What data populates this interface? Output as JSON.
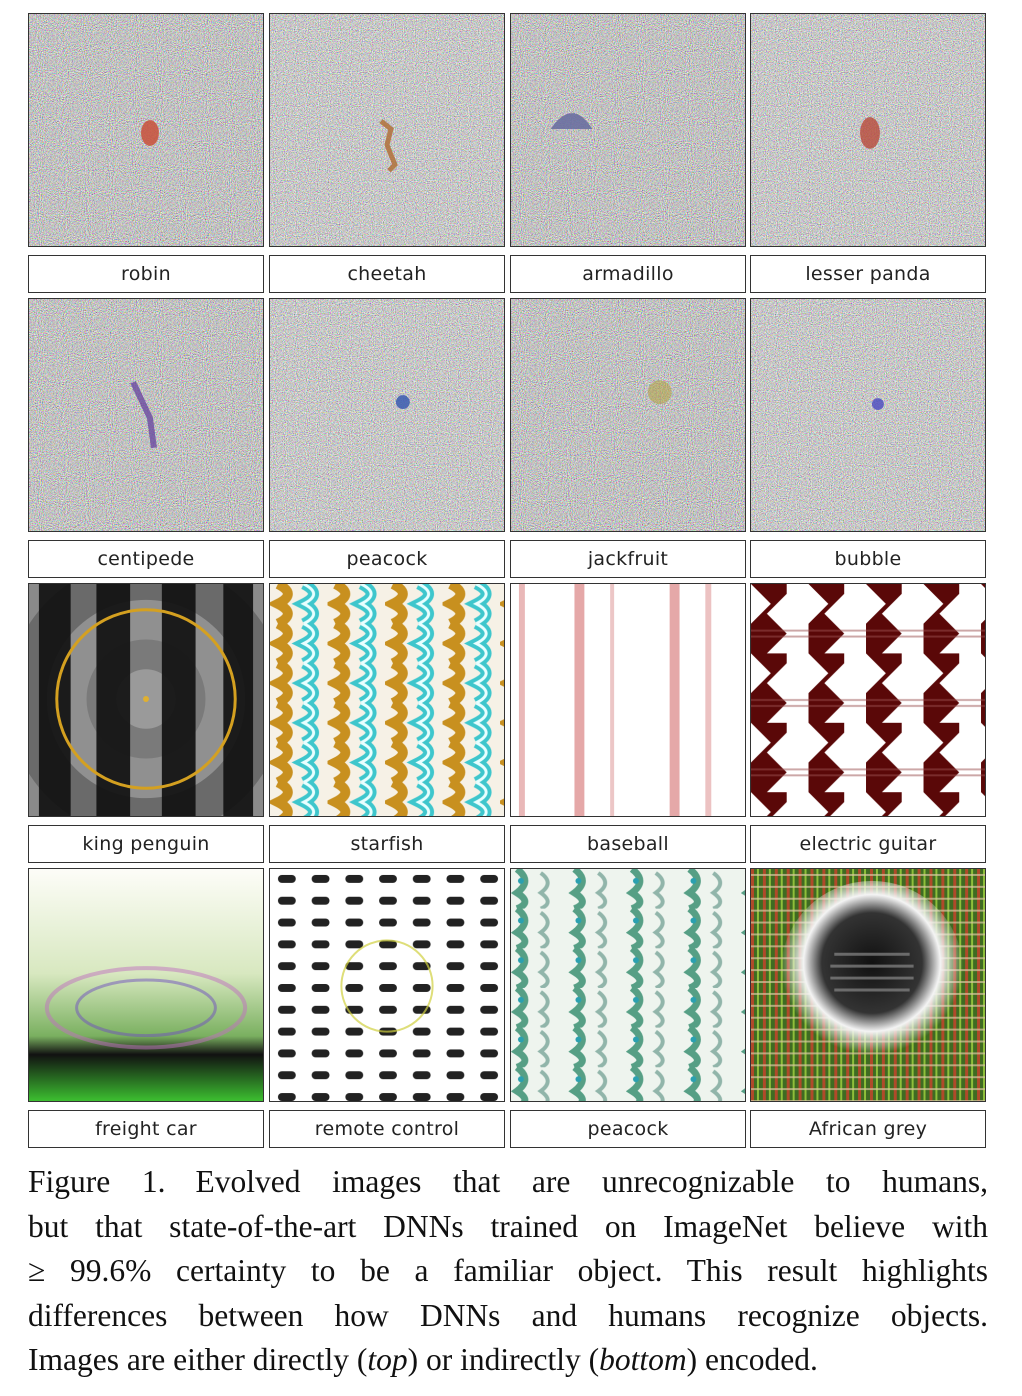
{
  "figure": {
    "rows": [
      {
        "encoding": "direct",
        "labels": [
          "robin",
          "cheetah",
          "armadillo",
          "lesser panda"
        ]
      },
      {
        "encoding": "direct",
        "labels": [
          "centipede",
          "peacock",
          "jackfruit",
          "bubble"
        ]
      },
      {
        "encoding": "indirect",
        "labels": [
          "king penguin",
          "starfish",
          "baseball",
          "electric guitar"
        ]
      },
      {
        "encoding": "indirect",
        "labels": [
          "freight car",
          "remote control",
          "peacock",
          "African grey"
        ]
      }
    ]
  },
  "caption": {
    "lead": "Figure 1.",
    "line1_rest": "Evolved images that are unrecognizable to humans,",
    "line2": "but that state-of-the-art DNNs trained on ImageNet believe with",
    "line3": "≥  99.6% certainty to be a familiar object. This result highlights",
    "line4": "differences between how DNNs and humans recognize objects.",
    "line5_a": "Images are either directly (",
    "line5_top": "top",
    "line5_b": ") or indirectly (",
    "line5_bottom": "bottom",
    "line5_c": ") encoded."
  }
}
